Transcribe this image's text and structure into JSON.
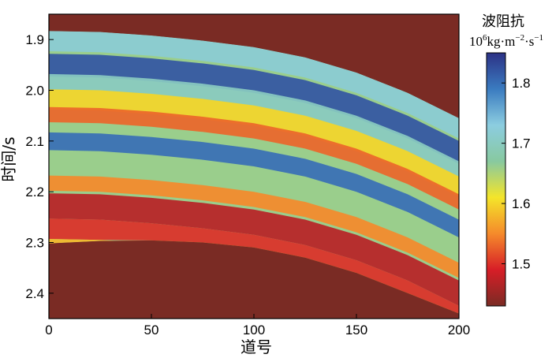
{
  "chart_data": {
    "type": "heatmap",
    "title": "",
    "xlabel": "道号",
    "ylabel": "时间/s",
    "x_ticks": [
      "0",
      "50",
      "100",
      "150",
      "200"
    ],
    "y_ticks": [
      "1.9",
      "2.0",
      "2.1",
      "2.2",
      "2.3",
      "2.4"
    ],
    "xlim": [
      0,
      200
    ],
    "ylim": [
      2.45,
      1.85
    ],
    "y_axis_reversed": true,
    "colorbar": {
      "title": "波阻抗",
      "unit_base": "10",
      "unit_exp": "6",
      "unit_main": "kg·m",
      "unit_exp2": "−2",
      "unit_mid": "·s",
      "unit_exp3": "−1",
      "ticks": [
        "1.8",
        "1.7",
        "1.6",
        "1.5"
      ],
      "range": [
        1.43,
        1.85
      ],
      "colormap": "jet",
      "colors": [
        "#7a2b24",
        "#d71e27",
        "#f58a2b",
        "#f4e52a",
        "#88c9a0",
        "#8ccde0",
        "#3a7bc0",
        "#2c3185"
      ]
    },
    "background_color": "#7a2b24",
    "x": [
      0,
      25,
      50,
      75,
      100,
      125,
      150,
      175,
      200
    ],
    "top_boundary_time": [
      1.883,
      1.885,
      1.892,
      1.902,
      1.915,
      1.935,
      1.965,
      2.005,
      2.055
    ],
    "bottom_boundary_time": [
      2.302,
      2.297,
      2.296,
      2.3,
      2.31,
      2.33,
      2.36,
      2.4,
      2.44
    ],
    "layers": [
      {
        "t_offset": 0.0,
        "thickness": 0.04,
        "value": 1.72
      },
      {
        "t_offset": 0.045,
        "thickness": 0.045,
        "value": 1.82
      },
      {
        "t_offset": 0.085,
        "thickness": 0.03,
        "value": 1.7
      },
      {
        "t_offset": 0.115,
        "thickness": 0.04,
        "value": 1.6
      },
      {
        "t_offset": 0.15,
        "thickness": 0.03,
        "value": 1.53
      },
      {
        "t_offset": 0.2,
        "thickness": 0.035,
        "value": 1.8
      },
      {
        "t_offset": 0.24,
        "thickness": 0.04,
        "value": 1.66
      },
      {
        "t_offset": 0.285,
        "thickness": 0.03,
        "value": 1.55
      },
      {
        "t_offset": 0.32,
        "thickness": 0.05,
        "value": 1.47
      },
      {
        "t_offset": 0.37,
        "thickness": 0.04,
        "value": 1.5
      },
      {
        "t_offset": 0.41,
        "thickness": 0.02,
        "value": 1.58
      }
    ]
  }
}
